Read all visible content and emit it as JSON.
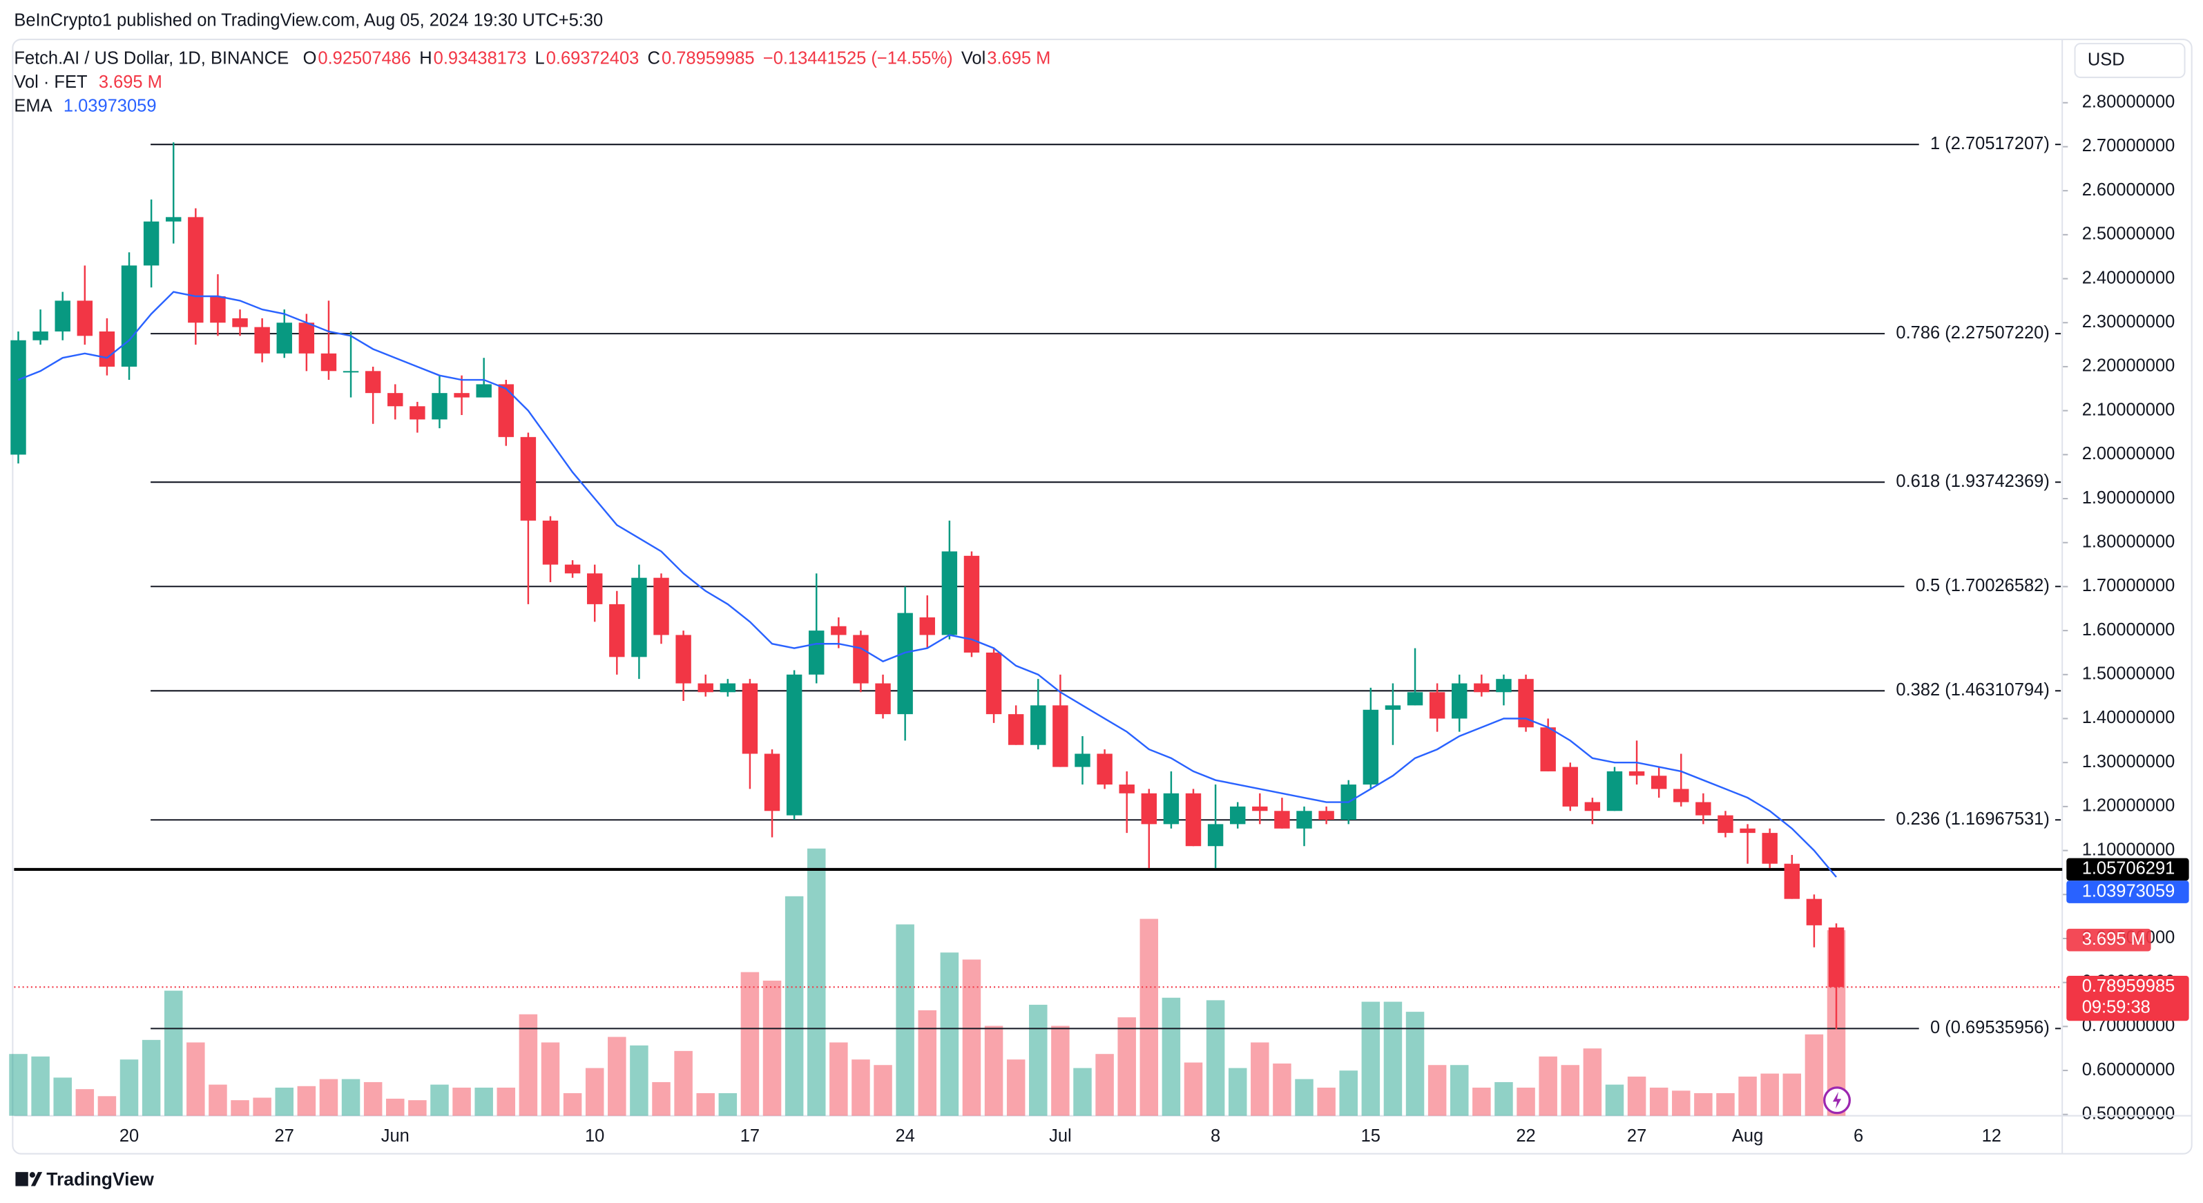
{
  "header": "BeInCrypto1 published on TradingView.com, Aug 05, 2024 19:30 UTC+5:30",
  "brand": "TradingView",
  "chart_data": {
    "type": "candlestick",
    "symbol": "Fetch.AI / US Dollar, 1D, BINANCE",
    "ohlc_letters": [
      "O",
      "H",
      "L",
      "C"
    ],
    "change": "−0.13441525 (−14.55%)",
    "vol_label": "Vol",
    "currency": "USD",
    "timer": "09:59:38",
    "up_color": "#089981",
    "down_color": "#f23645",
    "x": [
      "05-15",
      "05-16",
      "05-17",
      "05-18",
      "05-19",
      "05-20",
      "05-21",
      "05-22",
      "05-23",
      "05-24",
      "05-25",
      "05-26",
      "05-27",
      "05-28",
      "05-29",
      "05-30",
      "05-31",
      "06-01",
      "06-02",
      "06-03",
      "06-04",
      "06-05",
      "06-06",
      "06-07",
      "06-08",
      "06-09",
      "06-10",
      "06-11",
      "06-12",
      "06-13",
      "06-14",
      "06-15",
      "06-16",
      "06-17",
      "06-18",
      "06-19",
      "06-20",
      "06-21",
      "06-22",
      "06-23",
      "06-24",
      "06-25",
      "06-26",
      "06-27",
      "06-28",
      "06-29",
      "06-30",
      "07-01",
      "07-02",
      "07-03",
      "07-04",
      "07-05",
      "07-06",
      "07-07",
      "07-08",
      "07-09",
      "07-10",
      "07-11",
      "07-12",
      "07-13",
      "07-14",
      "07-15",
      "07-16",
      "07-17",
      "07-18",
      "07-19",
      "07-20",
      "07-21",
      "07-22",
      "07-23",
      "07-24",
      "07-25",
      "07-26",
      "07-27",
      "07-28",
      "07-29",
      "07-30",
      "07-31",
      "08-01",
      "08-02",
      "08-03",
      "08-04",
      "08-05"
    ],
    "open": [
      2.0,
      2.26,
      2.28,
      2.35,
      2.28,
      2.2,
      2.43,
      2.53,
      2.54,
      2.36,
      2.31,
      2.29,
      2.23,
      2.3,
      2.23,
      2.19,
      2.19,
      2.14,
      2.11,
      2.08,
      2.14,
      2.13,
      2.16,
      2.04,
      1.85,
      1.75,
      1.73,
      1.66,
      1.54,
      1.72,
      1.59,
      1.48,
      1.46,
      1.48,
      1.32,
      1.18,
      1.5,
      1.61,
      1.59,
      1.48,
      1.41,
      1.63,
      1.59,
      1.77,
      1.55,
      1.41,
      1.34,
      1.43,
      1.29,
      1.32,
      1.25,
      1.23,
      1.16,
      1.23,
      1.11,
      1.16,
      1.2,
      1.19,
      1.15,
      1.19,
      1.17,
      1.25,
      1.42,
      1.43,
      1.46,
      1.4,
      1.48,
      1.46,
      1.49,
      1.38,
      1.29,
      1.21,
      1.19,
      1.28,
      1.27,
      1.24,
      1.21,
      1.18,
      1.15,
      1.14,
      1.07,
      0.99,
      0.92507486
    ],
    "high": [
      2.28,
      2.33,
      2.37,
      2.43,
      2.31,
      2.46,
      2.58,
      2.71,
      2.56,
      2.41,
      2.33,
      2.31,
      2.33,
      2.32,
      2.35,
      2.28,
      2.2,
      2.16,
      2.12,
      2.18,
      2.18,
      2.22,
      2.17,
      2.05,
      1.86,
      1.76,
      1.75,
      1.69,
      1.75,
      1.73,
      1.6,
      1.5,
      1.49,
      1.49,
      1.33,
      1.51,
      1.73,
      1.63,
      1.6,
      1.5,
      1.7,
      1.68,
      1.85,
      1.78,
      1.56,
      1.43,
      1.49,
      1.5,
      1.36,
      1.33,
      1.28,
      1.24,
      1.28,
      1.24,
      1.25,
      1.21,
      1.23,
      1.22,
      1.2,
      1.2,
      1.26,
      1.47,
      1.48,
      1.56,
      1.48,
      1.5,
      1.5,
      1.5,
      1.5,
      1.4,
      1.3,
      1.22,
      1.29,
      1.35,
      1.29,
      1.32,
      1.23,
      1.19,
      1.16,
      1.15,
      1.09,
      1.0,
      0.93438173
    ],
    "low": [
      1.98,
      2.25,
      2.26,
      2.25,
      2.18,
      2.17,
      2.38,
      2.48,
      2.25,
      2.27,
      2.27,
      2.21,
      2.22,
      2.19,
      2.17,
      2.13,
      2.07,
      2.08,
      2.05,
      2.06,
      2.09,
      2.13,
      2.02,
      1.66,
      1.71,
      1.72,
      1.62,
      1.5,
      1.49,
      1.57,
      1.44,
      1.45,
      1.45,
      1.24,
      1.13,
      1.17,
      1.48,
      1.56,
      1.46,
      1.4,
      1.35,
      1.56,
      1.58,
      1.54,
      1.39,
      1.34,
      1.33,
      1.29,
      1.25,
      1.24,
      1.14,
      1.06,
      1.15,
      1.11,
      1.06,
      1.15,
      1.16,
      1.15,
      1.11,
      1.16,
      1.16,
      1.24,
      1.34,
      1.43,
      1.37,
      1.37,
      1.45,
      1.43,
      1.37,
      1.28,
      1.19,
      1.16,
      1.19,
      1.25,
      1.22,
      1.2,
      1.16,
      1.13,
      1.07,
      1.06,
      0.99,
      0.88,
      0.69372403
    ],
    "close": [
      2.26,
      2.28,
      2.35,
      2.27,
      2.2,
      2.43,
      2.53,
      2.54,
      2.3,
      2.3,
      2.29,
      2.23,
      2.3,
      2.23,
      2.19,
      2.19,
      2.14,
      2.11,
      2.08,
      2.14,
      2.13,
      2.16,
      2.04,
      1.85,
      1.75,
      1.73,
      1.66,
      1.54,
      1.72,
      1.59,
      1.48,
      1.46,
      1.48,
      1.32,
      1.19,
      1.5,
      1.6,
      1.59,
      1.48,
      1.41,
      1.64,
      1.59,
      1.78,
      1.55,
      1.41,
      1.34,
      1.43,
      1.29,
      1.32,
      1.25,
      1.23,
      1.16,
      1.23,
      1.11,
      1.16,
      1.2,
      1.19,
      1.15,
      1.19,
      1.17,
      1.25,
      1.42,
      1.43,
      1.46,
      1.4,
      1.48,
      1.46,
      1.49,
      1.38,
      1.28,
      1.2,
      1.19,
      1.28,
      1.27,
      1.24,
      1.21,
      1.18,
      1.14,
      1.14,
      1.07,
      0.99,
      0.93,
      0.78959985
    ],
    "volume": {
      "name": "Vol · FET",
      "values": [
        1.23,
        1.18,
        0.76,
        0.53,
        0.39,
        1.12,
        1.51,
        2.49,
        1.46,
        0.62,
        0.31,
        0.36,
        0.56,
        0.59,
        0.73,
        0.73,
        0.67,
        0.34,
        0.31,
        0.62,
        0.56,
        0.56,
        0.56,
        2.02,
        1.46,
        0.45,
        0.95,
        1.57,
        1.4,
        0.67,
        1.29,
        0.45,
        0.45,
        2.86,
        2.69,
        4.37,
        5.32,
        1.46,
        1.12,
        1.01,
        3.81,
        2.1,
        3.25,
        3.11,
        1.79,
        1.12,
        2.21,
        1.79,
        0.95,
        1.23,
        1.96,
        3.92,
        2.35,
        1.06,
        2.3,
        0.95,
        1.46,
        1.04,
        0.73,
        0.56,
        0.9,
        2.27,
        2.27,
        2.07,
        1.01,
        1.01,
        0.56,
        0.67,
        0.56,
        1.18,
        1.01,
        1.34,
        0.62,
        0.78,
        0.56,
        0.5,
        0.45,
        0.45,
        0.78,
        0.84,
        0.84,
        1.62,
        3.695
      ],
      "value_labels": [
        null,
        null,
        null,
        null,
        null,
        null,
        null,
        null,
        null,
        null,
        null,
        null,
        null,
        null,
        null,
        null,
        null,
        null,
        null,
        null,
        null,
        null,
        null,
        null,
        null,
        null,
        null,
        null,
        null,
        null,
        null,
        null,
        null,
        null,
        null,
        null,
        null,
        null,
        null,
        null,
        null,
        null,
        null,
        null,
        null,
        null,
        null,
        null,
        null,
        null,
        null,
        null,
        null,
        null,
        null,
        null,
        null,
        null,
        null,
        null,
        null,
        null,
        null,
        null,
        null,
        null,
        null,
        null,
        null,
        null,
        null,
        null,
        null,
        null,
        null,
        null,
        null,
        null,
        null,
        null,
        null,
        null,
        "3.695 M"
      ]
    },
    "ema": {
      "name": "EMA",
      "color": "#2962ff",
      "values": [
        2.17,
        2.19,
        2.22,
        2.23,
        2.22,
        2.26,
        2.32,
        2.37,
        2.36,
        2.36,
        2.35,
        2.33,
        2.32,
        2.3,
        2.28,
        2.27,
        2.24,
        2.22,
        2.2,
        2.18,
        2.17,
        2.17,
        2.15,
        2.1,
        2.03,
        1.96,
        1.9,
        1.84,
        1.81,
        1.78,
        1.73,
        1.69,
        1.66,
        1.62,
        1.57,
        1.56,
        1.57,
        1.57,
        1.56,
        1.53,
        1.55,
        1.56,
        1.59,
        1.58,
        1.56,
        1.52,
        1.5,
        1.46,
        1.43,
        1.4,
        1.37,
        1.33,
        1.31,
        1.28,
        1.26,
        1.25,
        1.24,
        1.23,
        1.22,
        1.21,
        1.21,
        1.24,
        1.27,
        1.31,
        1.33,
        1.36,
        1.38,
        1.4,
        1.4,
        1.38,
        1.35,
        1.31,
        1.3,
        1.3,
        1.29,
        1.28,
        1.26,
        1.24,
        1.22,
        1.19,
        1.15,
        1.1,
        1.03973059
      ]
    },
    "fib_levels": [
      {
        "value": 2.70517207,
        "label": "1 (2.70517207)"
      },
      {
        "value": 2.2750722,
        "label": "0.786 (2.27507220)"
      },
      {
        "value": 1.93742369,
        "label": "0.618 (1.93742369)"
      },
      {
        "value": 1.70026582,
        "label": "0.5 (1.70026582)"
      },
      {
        "value": 1.46310794,
        "label": "0.382 (1.46310794)"
      },
      {
        "value": 1.16967531,
        "label": "0.236 (1.16967531)"
      },
      {
        "value": 0.69535956,
        "label": "0 (0.69535956)"
      }
    ],
    "hline": 1.05706291,
    "ylim": [
      0.497,
      2.944
    ],
    "yticks": [
      {
        "value": 2.8,
        "label": "2.80000000"
      },
      {
        "value": 2.7,
        "label": "2.70000000"
      },
      {
        "value": 2.6,
        "label": "2.60000000"
      },
      {
        "value": 2.5,
        "label": "2.50000000"
      },
      {
        "value": 2.4,
        "label": "2.40000000"
      },
      {
        "value": 2.3,
        "label": "2.30000000"
      },
      {
        "value": 2.2,
        "label": "2.20000000"
      },
      {
        "value": 2.1,
        "label": "2.10000000"
      },
      {
        "value": 2.0,
        "label": "2.00000000"
      },
      {
        "value": 1.9,
        "label": "1.90000000"
      },
      {
        "value": 1.8,
        "label": "1.80000000"
      },
      {
        "value": 1.7,
        "label": "1.70000000"
      },
      {
        "value": 1.6,
        "label": "1.60000000"
      },
      {
        "value": 1.5,
        "label": "1.50000000"
      },
      {
        "value": 1.4,
        "label": "1.40000000"
      },
      {
        "value": 1.3,
        "label": "1.30000000"
      },
      {
        "value": 1.2,
        "label": "1.20000000"
      },
      {
        "value": 1.1,
        "label": "1.10000000"
      },
      {
        "value": 1.0,
        "label": "1.00000000"
      },
      {
        "value": 0.9,
        "label": "0.90000000"
      },
      {
        "value": 0.8,
        "label": "0.80000000"
      },
      {
        "value": 0.7,
        "label": "0.70000000"
      },
      {
        "value": 0.6,
        "label": "0.60000000"
      },
      {
        "value": 0.5,
        "label": "0.50000000"
      }
    ],
    "xticks": [
      {
        "value": "05-20",
        "label": "20"
      },
      {
        "value": "05-27",
        "label": "27"
      },
      {
        "value": "06-01",
        "label": "Jun"
      },
      {
        "value": "06-10",
        "label": "10"
      },
      {
        "value": "06-17",
        "label": "17"
      },
      {
        "value": "06-24",
        "label": "24"
      },
      {
        "value": "07-01",
        "label": "Jul"
      },
      {
        "value": "07-08",
        "label": "8"
      },
      {
        "value": "07-15",
        "label": "15"
      },
      {
        "value": "07-22",
        "label": "22"
      },
      {
        "value": "07-27",
        "label": "27"
      },
      {
        "value": "08-01",
        "label": "Aug"
      },
      {
        "value": "08-06",
        "label": "6"
      },
      {
        "value": "08-12",
        "label": "12"
      }
    ]
  }
}
